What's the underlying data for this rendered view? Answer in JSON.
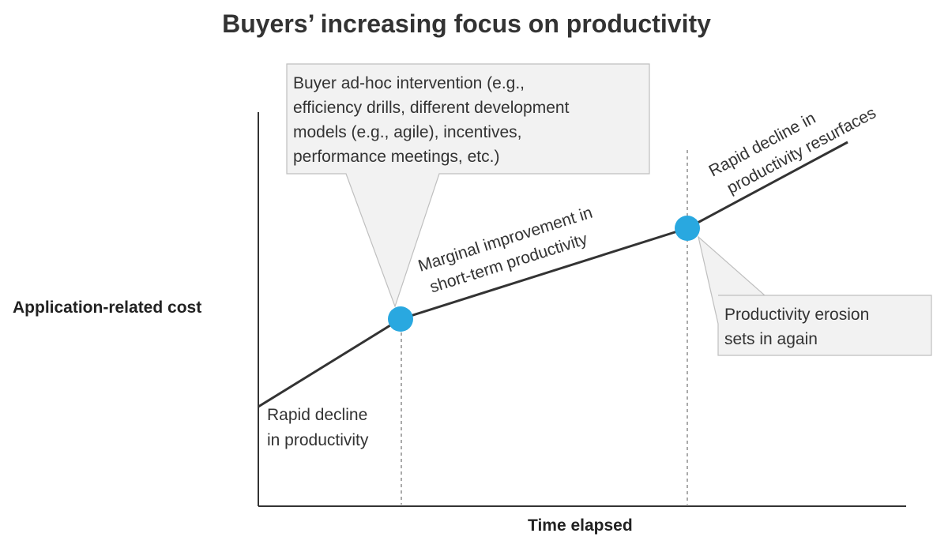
{
  "title": "Buyers’ increasing focus on productivity",
  "y_axis_label": "Application-related cost",
  "x_axis_label": "Time elapsed",
  "callouts": {
    "intervention": {
      "lines": [
        "Buyer ad-hoc intervention (e.g.,",
        "efficiency drills, different development",
        "models (e.g., agile), incentives,",
        "performance meetings, etc.)"
      ]
    },
    "erosion": {
      "lines": [
        "Productivity erosion",
        "sets in again"
      ]
    }
  },
  "segment_labels": {
    "phase1": [
      "Rapid decline",
      "in productivity"
    ],
    "phase2": [
      "Marginal improvement in",
      "short-term productivity"
    ],
    "phase3": [
      "Rapid decline in",
      "productivity resurfaces"
    ]
  },
  "colors": {
    "line": "#333333",
    "marker": "#29a8e0",
    "callout_fill": "#f2f2f2",
    "callout_border": "#bfbfbf",
    "guide": "#555555"
  },
  "markers": [
    "intervention-point",
    "erosion-point"
  ]
}
